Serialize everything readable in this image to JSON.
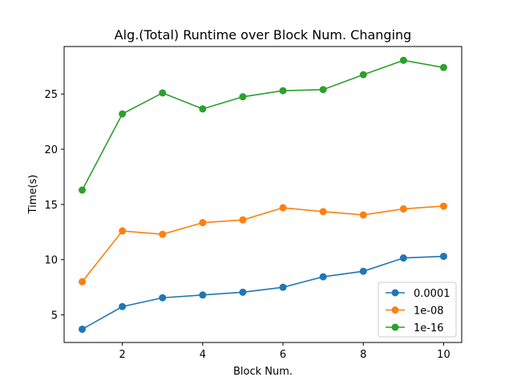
{
  "chart_data": {
    "type": "line",
    "title": "Alg.(Total) Runtime over Block Num. Changing",
    "xlabel": "Block Num.",
    "ylabel": "Time(s)",
    "xlim": [
      0.55,
      10.45
    ],
    "ylim": [
      2.5,
      29.3
    ],
    "xticks": [
      2,
      4,
      6,
      8,
      10
    ],
    "yticks": [
      5,
      10,
      15,
      20,
      25
    ],
    "grid": false,
    "legend_position": "lower-right",
    "x": [
      1,
      2,
      3,
      4,
      5,
      6,
      7,
      8,
      9,
      10
    ],
    "series": [
      {
        "name": "0.0001",
        "color": "#1f77b4",
        "values": [
          3.7,
          5.75,
          6.55,
          6.8,
          7.05,
          7.5,
          8.45,
          8.95,
          10.15,
          10.3
        ]
      },
      {
        "name": "1e-08",
        "color": "#ff7f0e",
        "values": [
          8.0,
          12.6,
          12.3,
          13.35,
          13.6,
          14.7,
          14.35,
          14.05,
          14.6,
          14.85
        ]
      },
      {
        "name": "1e-16",
        "color": "#2ca02c",
        "values": [
          16.3,
          23.2,
          25.1,
          23.65,
          24.75,
          25.3,
          25.4,
          26.75,
          28.05,
          27.4
        ]
      }
    ]
  }
}
